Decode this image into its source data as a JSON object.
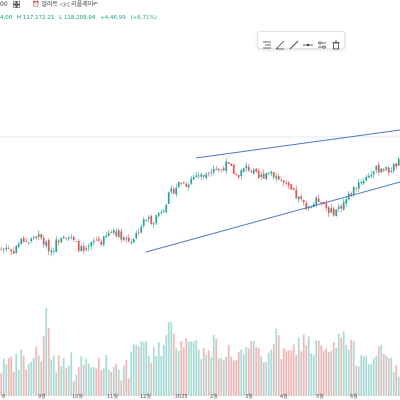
{
  "topbar": {
    "item_a_label": "00",
    "item_b_label": "얼러트",
    "item_c_label": "리플레이"
  },
  "ohlc": {
    "v1": "4,00",
    "v2": "H 117,172.21",
    "v3": "L 118,209.94",
    "v4": "+4,46.99",
    "v5": "(+6.71%)"
  },
  "drawing_toolbar": {
    "tools": [
      "text-align-icon",
      "ruler-icon",
      "trend-line-icon",
      "horizontal-line-icon",
      "settings-icon",
      "trash-icon"
    ]
  },
  "colors": {
    "up": "#26a69a",
    "down": "#ef5350",
    "trendline": "#4a78c8",
    "gridline": "#d9e4ea"
  },
  "chart_data": {
    "type": "candlestick",
    "x_ticks": [
      "8",
      "9월",
      "10월",
      "11월",
      "12월",
      "2025",
      "2월",
      "3월",
      "4월",
      "5월",
      "6월"
    ],
    "price_path": [
      0.3,
      0.32,
      0.28,
      0.34,
      0.37,
      0.35,
      0.4,
      0.38,
      0.33,
      0.29,
      0.36,
      0.42,
      0.39,
      0.35,
      0.31,
      0.27,
      0.33,
      0.37,
      0.35,
      0.4,
      0.44,
      0.41,
      0.38,
      0.36,
      0.4,
      0.47,
      0.52,
      0.5,
      0.55,
      0.6,
      0.68,
      0.73,
      0.78,
      0.76,
      0.8,
      0.83,
      0.81,
      0.86,
      0.88,
      0.85,
      0.9,
      0.87,
      0.82,
      0.85,
      0.88,
      0.84,
      0.8,
      0.83,
      0.86,
      0.82,
      0.78,
      0.74,
      0.7,
      0.66,
      0.62,
      0.6,
      0.63,
      0.66,
      0.6,
      0.56,
      0.58,
      0.62,
      0.67,
      0.73,
      0.78,
      0.8,
      0.84,
      0.86,
      0.88,
      0.85,
      0.88,
      0.91
    ],
    "volume_path": [
      0.3,
      0.45,
      0.25,
      0.35,
      0.4,
      0.28,
      0.5,
      0.3,
      0.95,
      0.4,
      0.35,
      0.3,
      0.45,
      0.25,
      0.3,
      0.35,
      0.28,
      0.32,
      0.4,
      0.3,
      0.35,
      0.3,
      0.25,
      0.3,
      0.5,
      0.6,
      0.45,
      0.4,
      0.55,
      0.5,
      0.7,
      0.6,
      0.55,
      0.65,
      0.5,
      0.6,
      0.45,
      0.4,
      0.55,
      0.48,
      0.42,
      0.5,
      0.38,
      0.45,
      0.4,
      0.5,
      0.42,
      0.35,
      0.55,
      0.6,
      0.48,
      0.4,
      0.45,
      0.52,
      0.6,
      0.55,
      0.48,
      0.5,
      0.45,
      0.4,
      0.58,
      0.65,
      0.5,
      0.45,
      0.4,
      0.5,
      0.42,
      0.38,
      0.45,
      0.4,
      0.35,
      0.3
    ],
    "grid": "horizontal-reference-line"
  }
}
